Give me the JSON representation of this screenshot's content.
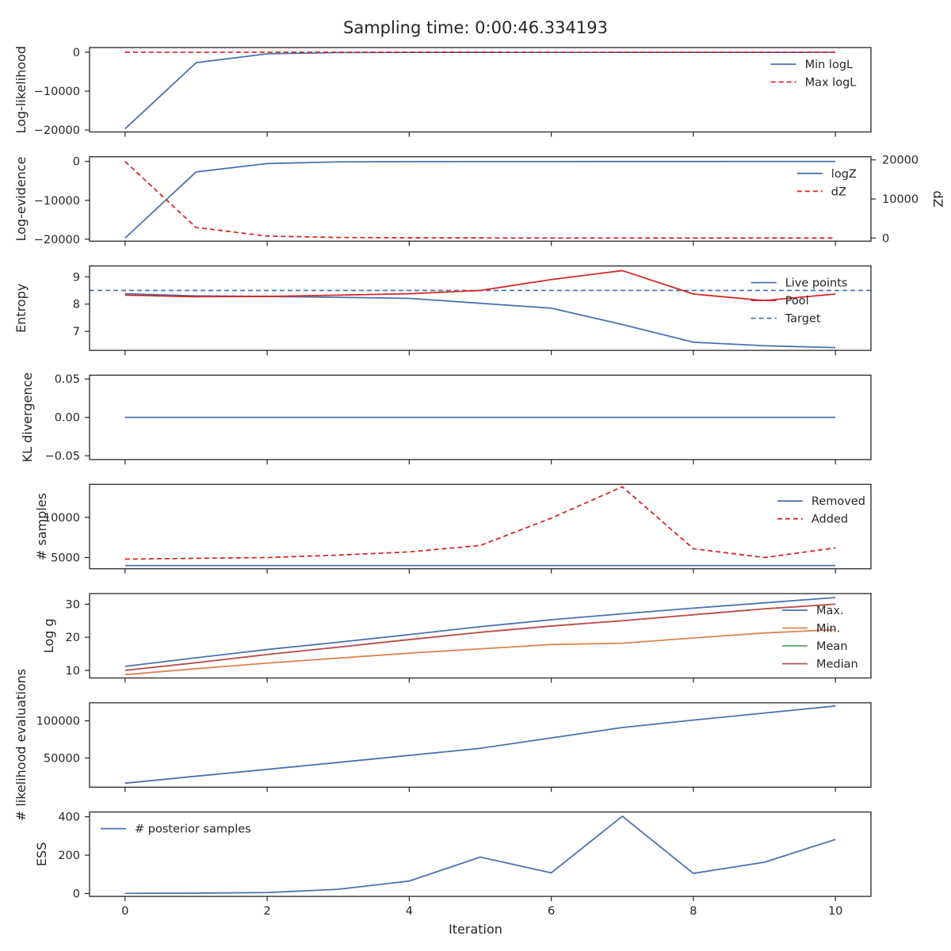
{
  "title": "Sampling time: 0:00:46.334193",
  "colors": {
    "blue": "#4c72b0",
    "red": "#d62728",
    "orange": "#dd8452",
    "green": "#55a868",
    "brown_red": "#c44e52",
    "axis": "#262626"
  },
  "chart_data": [
    {
      "type": "line",
      "ylabel": "Log-likelihood",
      "xlim": [
        -0.5,
        10.5
      ],
      "ylim": [
        -20500,
        1200
      ],
      "yticks": [
        0,
        -10000,
        -20000
      ],
      "yticklabels": [
        "0",
        "−10000",
        "−20000"
      ],
      "legend": "upper-right",
      "series": [
        {
          "name": "Min logL",
          "color": "#4c72b0",
          "dash": "solid",
          "x": [
            0,
            1,
            2,
            3,
            4,
            5,
            6,
            7,
            8,
            9,
            10
          ],
          "y": [
            -19700,
            -2700,
            -400,
            -100,
            -50,
            -30,
            -20,
            -15,
            -10,
            -8,
            -5
          ]
        },
        {
          "name": "Max logL",
          "color": "#d62728",
          "dash": "dashed",
          "x": [
            0,
            1,
            2,
            3,
            4,
            5,
            6,
            7,
            8,
            9,
            10
          ],
          "y": [
            -5,
            -5,
            -5,
            -5,
            -5,
            -5,
            -5,
            -5,
            -5,
            -5,
            -5
          ]
        }
      ]
    },
    {
      "type": "line",
      "ylabel": "Log-evidence",
      "ylabel2": "dZ",
      "xlim": [
        -0.5,
        10.5
      ],
      "ylim": [
        -20500,
        1200
      ],
      "yticks": [
        0,
        -10000,
        -20000
      ],
      "yticklabels": [
        "0",
        "−10000",
        "−20000"
      ],
      "ylim2": [
        -800,
        20800
      ],
      "yticks2": [
        20000,
        10000,
        0
      ],
      "yticklabels2": [
        "20000",
        "10000",
        "0"
      ],
      "legend": "upper-right",
      "series": [
        {
          "name": "logZ",
          "color": "#4c72b0",
          "dash": "solid",
          "axis": "left",
          "x": [
            0,
            1,
            2,
            3,
            4,
            5,
            6,
            7,
            8,
            9,
            10
          ],
          "y": [
            -19700,
            -2700,
            -550,
            -120,
            -60,
            -40,
            -30,
            -25,
            -20,
            -18,
            -15
          ]
        },
        {
          "name": "dZ",
          "color": "#d62728",
          "dash": "dashed",
          "axis": "right",
          "x": [
            0,
            1,
            2,
            3,
            4,
            5,
            6,
            7,
            8,
            9,
            10
          ],
          "y": [
            19600,
            2700,
            500,
            150,
            60,
            30,
            20,
            15,
            10,
            8,
            5
          ]
        }
      ]
    },
    {
      "type": "line",
      "ylabel": "Entropy",
      "xlim": [
        -0.5,
        10.5
      ],
      "ylim": [
        6.3,
        9.4
      ],
      "yticks": [
        9,
        8,
        7
      ],
      "yticklabels": [
        "9",
        "8",
        "7"
      ],
      "legend": "upper-right",
      "hline": {
        "name": "Target",
        "y": 8.5,
        "color": "#4c72b0",
        "dash": "dashed"
      },
      "series": [
        {
          "name": "Live points",
          "color": "#4c72b0",
          "dash": "solid",
          "x": [
            0,
            1,
            2,
            3,
            4,
            5,
            6,
            7,
            8,
            9,
            10
          ],
          "y": [
            8.38,
            8.3,
            8.28,
            8.25,
            8.21,
            8.03,
            7.85,
            7.25,
            6.6,
            6.47,
            6.4
          ]
        },
        {
          "name": "Pool",
          "color": "#d62728",
          "dash": "solid",
          "x": [
            0,
            1,
            2,
            3,
            4,
            5,
            6,
            7,
            8,
            9,
            10
          ],
          "y": [
            8.33,
            8.27,
            8.28,
            8.33,
            8.38,
            8.5,
            8.9,
            9.23,
            8.37,
            8.13,
            8.37
          ]
        }
      ]
    },
    {
      "type": "line",
      "ylabel": "KL divergence",
      "xlim": [
        -0.5,
        10.5
      ],
      "ylim": [
        -0.055,
        0.055
      ],
      "yticks": [
        0.05,
        0.0,
        -0.05
      ],
      "yticklabels": [
        "0.05",
        "0.00",
        "−0.05"
      ],
      "series": [
        {
          "color": "#4c72b0",
          "dash": "solid",
          "x": [
            0,
            1,
            2,
            3,
            4,
            5,
            6,
            7,
            8,
            9,
            10
          ],
          "y": [
            0,
            0,
            0,
            0,
            0,
            0,
            0,
            0,
            0,
            0,
            0
          ]
        }
      ]
    },
    {
      "type": "line",
      "ylabel": "# samples",
      "xlim": [
        -0.5,
        10.5
      ],
      "ylim": [
        3600,
        14100
      ],
      "yticks": [
        10000,
        5000
      ],
      "yticklabels": [
        "10000",
        "5000"
      ],
      "legend": "upper-right",
      "series": [
        {
          "name": "Removed",
          "color": "#4c72b0",
          "dash": "solid",
          "x": [
            0,
            1,
            2,
            3,
            4,
            5,
            6,
            7,
            8,
            9,
            10
          ],
          "y": [
            4000,
            4000,
            4000,
            4000,
            4000,
            4000,
            4000,
            4000,
            4000,
            4000,
            4000
          ]
        },
        {
          "name": "Added",
          "color": "#d62728",
          "dash": "dashed",
          "x": [
            0,
            1,
            2,
            3,
            4,
            5,
            6,
            7,
            8,
            9,
            10
          ],
          "y": [
            4800,
            4900,
            5000,
            5300,
            5700,
            6500,
            9900,
            13800,
            6100,
            5000,
            6200
          ]
        }
      ]
    },
    {
      "type": "line",
      "ylabel": "Log g",
      "xlim": [
        -0.5,
        10.5
      ],
      "ylim": [
        7.7,
        33.2
      ],
      "yticks": [
        30,
        20,
        10
      ],
      "yticklabels": [
        "30",
        "20",
        "10"
      ],
      "legend": "lower-right",
      "series": [
        {
          "name": "Max.",
          "color": "#4c72b0",
          "dash": "solid",
          "x": [
            0,
            1,
            2,
            3,
            4,
            5,
            6,
            7,
            8,
            9,
            10
          ],
          "y": [
            11.2,
            13.8,
            16.3,
            18.5,
            20.8,
            23.2,
            25.3,
            27.1,
            28.8,
            30.4,
            32.0
          ]
        },
        {
          "name": "Min.",
          "color": "#dd8452",
          "dash": "solid",
          "x": [
            0,
            1,
            2,
            3,
            4,
            5,
            6,
            7,
            8,
            9,
            10
          ],
          "y": [
            8.7,
            10.5,
            12.2,
            13.7,
            15.2,
            16.5,
            17.8,
            18.2,
            19.8,
            21.3,
            22.3
          ]
        },
        {
          "name": "Mean",
          "color": "#55a868",
          "dash": "solid",
          "x": [
            0,
            1,
            2,
            3,
            4,
            5,
            6,
            7,
            8,
            9,
            10
          ],
          "y": [
            10.0,
            12.3,
            14.8,
            17.0,
            19.3,
            21.5,
            23.4,
            25.0,
            26.8,
            28.6,
            30.0
          ]
        },
        {
          "name": "Median",
          "color": "#c44e52",
          "dash": "solid",
          "x": [
            0,
            1,
            2,
            3,
            4,
            5,
            6,
            7,
            8,
            9,
            10
          ],
          "y": [
            10.0,
            12.3,
            14.8,
            17.0,
            19.3,
            21.5,
            23.4,
            25.0,
            26.8,
            28.6,
            30.0
          ]
        }
      ]
    },
    {
      "type": "line",
      "ylabel": "# likelihood evaluations",
      "xlim": [
        -0.5,
        10.5
      ],
      "ylim": [
        10700,
        124300
      ],
      "yticks": [
        100000,
        50000
      ],
      "yticklabels": [
        "100000",
        "50000"
      ],
      "series": [
        {
          "color": "#4c72b0",
          "dash": "solid",
          "x": [
            0,
            1,
            2,
            3,
            4,
            5,
            6,
            7,
            8,
            9,
            10
          ],
          "y": [
            16000,
            25500,
            34700,
            44000,
            53500,
            63000,
            77000,
            91000,
            101000,
            110500,
            120000
          ]
        }
      ]
    },
    {
      "type": "line",
      "ylabel": "ESS",
      "xlabel": "Iteration",
      "xlim": [
        -0.5,
        10.5
      ],
      "ylim": [
        -15,
        425
      ],
      "yticks": [
        400,
        200,
        0
      ],
      "yticklabels": [
        "400",
        "200",
        "0"
      ],
      "xticks": [
        0,
        2,
        4,
        6,
        8,
        10
      ],
      "xticklabels": [
        "0",
        "2",
        "4",
        "6",
        "8",
        "10"
      ],
      "legend": "upper-left",
      "series": [
        {
          "name": "# posterior samples",
          "color": "#4c72b0",
          "dash": "solid",
          "x": [
            0,
            1,
            2,
            3,
            4,
            5,
            6,
            7,
            8,
            9,
            10
          ],
          "y": [
            1,
            2,
            5,
            22,
            65,
            190,
            108,
            403,
            105,
            163,
            282
          ]
        }
      ]
    }
  ]
}
